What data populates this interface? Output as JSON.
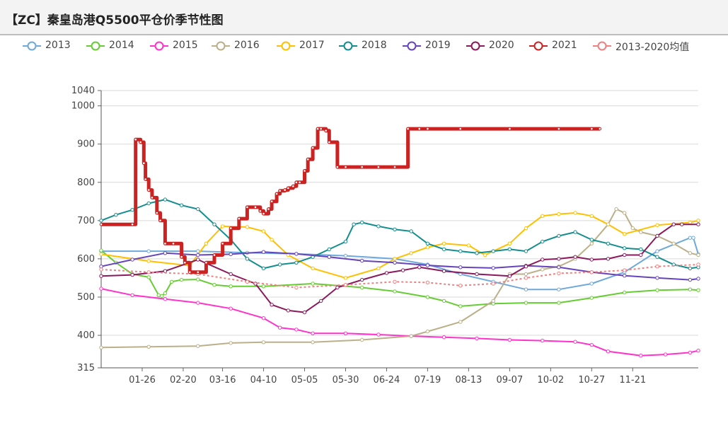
{
  "title": "【ZC】秦皇岛港Q5500平仓价季节性图",
  "chart_data": {
    "type": "line",
    "title": "【ZC】秦皇岛港Q5500平仓价季节性图",
    "y_ticks": [
      315,
      400,
      500,
      600,
      700,
      800,
      900,
      1000,
      1040
    ],
    "ylim": [
      315,
      1040
    ],
    "x_ticks": [
      {
        "day": 26,
        "label": "01-26"
      },
      {
        "day": 51,
        "label": "02-20"
      },
      {
        "day": 75,
        "label": "03-16"
      },
      {
        "day": 100,
        "label": "04-10"
      },
      {
        "day": 125,
        "label": "05-05"
      },
      {
        "day": 150,
        "label": "05-30"
      },
      {
        "day": 175,
        "label": "06-24"
      },
      {
        "day": 200,
        "label": "07-19"
      },
      {
        "day": 225,
        "label": "08-13"
      },
      {
        "day": 250,
        "label": "09-07"
      },
      {
        "day": 275,
        "label": "10-02"
      },
      {
        "day": 300,
        "label": "10-27"
      },
      {
        "day": 325,
        "label": "11-21"
      }
    ],
    "x_range": [
      1,
      365
    ],
    "legend_position": "top",
    "grid": true,
    "series": [
      {
        "name": "2013",
        "color": "#6fa8dc",
        "width": 2,
        "step": false,
        "x": [
          1,
          30,
          60,
          90,
          120,
          150,
          180,
          200,
          220,
          240,
          260,
          280,
          300,
          320,
          340,
          360,
          362,
          365
        ],
        "y": [
          620,
          620,
          620,
          616,
          613,
          608,
          600,
          585,
          560,
          540,
          520,
          520,
          535,
          565,
          620,
          655,
          655,
          612
        ]
      },
      {
        "name": "2014",
        "color": "#66cc33",
        "width": 2,
        "step": false,
        "x": [
          1,
          10,
          20,
          30,
          36,
          38,
          40,
          44,
          50,
          60,
          70,
          80,
          100,
          130,
          160,
          180,
          200,
          210,
          220,
          240,
          260,
          280,
          300,
          320,
          340,
          360,
          365
        ],
        "y": [
          622,
          590,
          560,
          552,
          505,
          503,
          510,
          540,
          545,
          546,
          532,
          528,
          528,
          535,
          525,
          515,
          500,
          490,
          476,
          483,
          485,
          485,
          498,
          512,
          518,
          520,
          518
        ]
      },
      {
        "name": "2015",
        "color": "#ff33cc",
        "width": 2,
        "step": false,
        "x": [
          1,
          20,
          40,
          60,
          80,
          100,
          110,
          120,
          130,
          150,
          170,
          190,
          210,
          230,
          250,
          270,
          290,
          300,
          310,
          330,
          345,
          360,
          365
        ],
        "y": [
          522,
          505,
          495,
          485,
          470,
          445,
          420,
          415,
          405,
          405,
          402,
          398,
          395,
          392,
          388,
          386,
          383,
          375,
          358,
          347,
          350,
          355,
          360
        ]
      },
      {
        "name": "2016",
        "color": "#bbb089",
        "width": 2,
        "step": false,
        "x": [
          1,
          30,
          60,
          80,
          100,
          130,
          160,
          190,
          200,
          220,
          240,
          250,
          260,
          270,
          280,
          290,
          300,
          310,
          315,
          320,
          325,
          330,
          340,
          350,
          360,
          365
        ],
        "y": [
          368,
          370,
          372,
          380,
          382,
          382,
          388,
          398,
          410,
          435,
          490,
          560,
          560,
          572,
          580,
          600,
          640,
          690,
          730,
          720,
          680,
          670,
          660,
          640,
          615,
          610
        ]
      },
      {
        "name": "2017",
        "color": "#ffc000",
        "width": 2,
        "step": false,
        "x": [
          1,
          30,
          55,
          65,
          75,
          90,
          100,
          105,
          115,
          130,
          150,
          170,
          180,
          190,
          200,
          210,
          225,
          235,
          250,
          260,
          270,
          280,
          290,
          300,
          310,
          320,
          340,
          360,
          365
        ],
        "y": [
          612,
          594,
          582,
          640,
          685,
          683,
          672,
          650,
          610,
          575,
          550,
          575,
          600,
          615,
          630,
          640,
          635,
          610,
          640,
          680,
          712,
          717,
          720,
          712,
          690,
          665,
          688,
          695,
          700
        ]
      },
      {
        "name": "2018",
        "color": "#138e8e",
        "width": 2,
        "step": false,
        "x": [
          1,
          10,
          20,
          30,
          40,
          50,
          60,
          70,
          80,
          90,
          100,
          110,
          120,
          130,
          140,
          150,
          155,
          160,
          170,
          180,
          190,
          200,
          210,
          220,
          230,
          240,
          250,
          260,
          270,
          280,
          290,
          300,
          310,
          320,
          330,
          340,
          350,
          360,
          365
        ],
        "y": [
          700,
          715,
          728,
          745,
          755,
          740,
          730,
          690,
          650,
          600,
          575,
          585,
          590,
          605,
          625,
          645,
          690,
          695,
          685,
          677,
          672,
          640,
          625,
          620,
          615,
          620,
          625,
          620,
          645,
          660,
          670,
          650,
          640,
          628,
          625,
          605,
          585,
          575,
          578
        ]
      },
      {
        "name": "2019",
        "color": "#6644bb",
        "width": 2,
        "step": false,
        "x": [
          1,
          20,
          40,
          60,
          80,
          100,
          120,
          140,
          160,
          180,
          200,
          220,
          240,
          260,
          280,
          300,
          320,
          340,
          360,
          365
        ],
        "y": [
          580,
          598,
          615,
          610,
          612,
          618,
          613,
          605,
          595,
          590,
          583,
          578,
          576,
          582,
          578,
          565,
          556,
          550,
          545,
          548
        ]
      },
      {
        "name": "2020",
        "color": "#8b1a5d",
        "width": 2,
        "step": false,
        "x": [
          1,
          20,
          40,
          60,
          80,
          95,
          105,
          115,
          125,
          135,
          145,
          160,
          175,
          185,
          195,
          210,
          230,
          250,
          260,
          270,
          280,
          290,
          300,
          310,
          320,
          330,
          340,
          350,
          355,
          365
        ],
        "y": [
          555,
          558,
          568,
          598,
          560,
          535,
          480,
          465,
          460,
          490,
          525,
          545,
          563,
          570,
          578,
          568,
          560,
          555,
          580,
          598,
          600,
          605,
          598,
          600,
          610,
          610,
          660,
          690,
          690,
          690
        ]
      },
      {
        "name": "2021",
        "color": "#cc2222",
        "width": 5,
        "step": true,
        "x": [
          1,
          20,
          22,
          25,
          27,
          28,
          30,
          32,
          35,
          37,
          40,
          45,
          50,
          52,
          55,
          60,
          65,
          70,
          75,
          80,
          85,
          90,
          95,
          98,
          100,
          103,
          105,
          108,
          110,
          113,
          115,
          118,
          120,
          122,
          125,
          127,
          130,
          133,
          135,
          138,
          140,
          145,
          150,
          160,
          170,
          180,
          188,
          195,
          200,
          220,
          250,
          280,
          300,
          305
        ],
        "y": [
          690,
          690,
          912,
          905,
          850,
          808,
          780,
          760,
          720,
          700,
          640,
          640,
          605,
          590,
          565,
          565,
          590,
          610,
          640,
          680,
          705,
          735,
          735,
          725,
          718,
          730,
          750,
          770,
          778,
          780,
          785,
          790,
          800,
          800,
          830,
          860,
          890,
          940,
          940,
          935,
          905,
          840,
          840,
          840,
          840,
          840,
          940,
          940,
          940,
          940,
          940,
          940,
          940,
          940
        ]
      },
      {
        "name": "2013-2020均值",
        "color": "#f08080",
        "width": 2,
        "dash": "3,3",
        "step": false,
        "x": [
          1,
          30,
          60,
          90,
          120,
          150,
          180,
          200,
          220,
          240,
          260,
          280,
          300,
          320,
          340,
          365
        ],
        "y": [
          572,
          565,
          560,
          540,
          525,
          532,
          540,
          538,
          530,
          535,
          550,
          562,
          565,
          570,
          580,
          585
        ]
      }
    ]
  }
}
